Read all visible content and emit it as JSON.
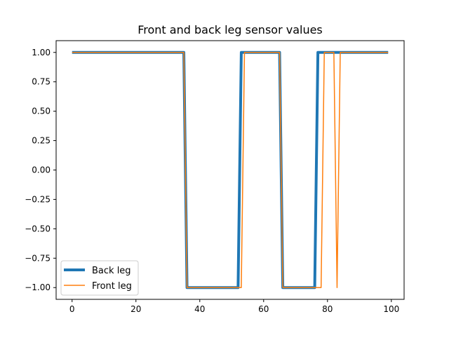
{
  "chart_data": {
    "type": "line",
    "title": "Front and back leg sensor values",
    "xlabel": "",
    "ylabel": "",
    "xlim": [
      -5,
      104
    ],
    "ylim": [
      -1.1,
      1.1
    ],
    "x_ticks": [
      0,
      20,
      40,
      60,
      80,
      100
    ],
    "x_tick_labels": [
      "0",
      "20",
      "40",
      "60",
      "80",
      "100"
    ],
    "y_ticks": [
      1.0,
      0.75,
      0.5,
      0.25,
      0.0,
      -0.25,
      -0.5,
      -0.75,
      -1.0
    ],
    "y_tick_labels": [
      "1.00",
      "0.75",
      "0.50",
      "0.25",
      "0.00",
      "−0.25",
      "−0.50",
      "−0.75",
      "−1.00"
    ],
    "grid": false,
    "legend_position": "lower-left",
    "series": [
      {
        "name": "Back leg",
        "color": "#1f77b4",
        "line_width": "thick",
        "x": [
          0,
          35,
          36,
          52,
          53,
          65,
          66,
          76,
          77,
          99
        ],
        "y": [
          1,
          1,
          -1,
          -1,
          1,
          1,
          -1,
          -1,
          1,
          1
        ]
      },
      {
        "name": "Front leg",
        "color": "#ff7f0e",
        "line_width": "thin",
        "x": [
          0,
          35,
          36,
          53,
          54,
          65,
          66,
          78,
          79,
          82,
          83,
          84,
          99
        ],
        "y": [
          1,
          1,
          -1,
          -1,
          1,
          1,
          -1,
          -1,
          1,
          1,
          -1,
          1,
          1
        ]
      }
    ]
  }
}
